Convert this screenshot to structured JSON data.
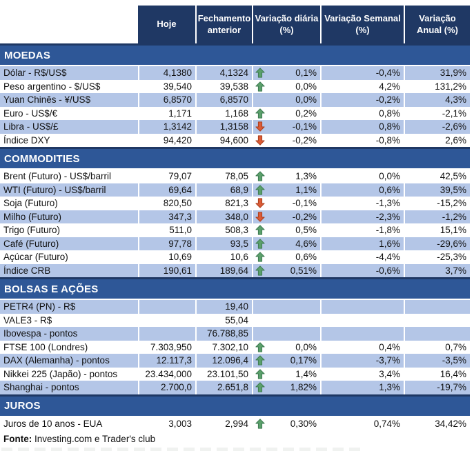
{
  "header": {
    "columns": [
      "Hoje",
      "Fechamento\nanterior",
      "Variação diária\n(%)",
      "Variação Semanal\n(%)",
      "Variação\nAnual (%)"
    ]
  },
  "sections": [
    {
      "title": "MOEDAS",
      "rows": [
        {
          "label": "Dólar - R$/US$",
          "hoje": "4,1380",
          "fechamento": "4,1324",
          "arrow": "up",
          "diaria": "0,1%",
          "semanal": "-0,4%",
          "anual": "31,9%"
        },
        {
          "label": "Peso argentino - $/US$",
          "hoje": "39,540",
          "fechamento": "39,538",
          "arrow": "up",
          "diaria": "0,0%",
          "semanal": "4,2%",
          "anual": "131,2%"
        },
        {
          "label": "Yuan Chinês - ¥/US$",
          "hoje": "6,8570",
          "fechamento": "6,8570",
          "arrow": null,
          "diaria": "0,0%",
          "semanal": "-0,2%",
          "anual": "4,3%"
        },
        {
          "label": "Euro - US$/€",
          "hoje": "1,171",
          "fechamento": "1,168",
          "arrow": "up",
          "diaria": "0,2%",
          "semanal": "0,8%",
          "anual": "-2,1%"
        },
        {
          "label": "Libra - US$/£",
          "hoje": "1,3142",
          "fechamento": "1,3158",
          "arrow": "down",
          "diaria": "-0,1%",
          "semanal": "0,8%",
          "anual": "-2,6%"
        },
        {
          "label": "Índice DXY",
          "hoje": "94,420",
          "fechamento": "94,600",
          "arrow": "down",
          "diaria": "-0,2%",
          "semanal": "-0,8%",
          "anual": "2,6%"
        }
      ]
    },
    {
      "title": "COMMODITIES",
      "rows": [
        {
          "label": "Brent (Futuro) - US$/barril",
          "hoje": "79,07",
          "fechamento": "78,05",
          "arrow": "up",
          "diaria": "1,3%",
          "semanal": "0,0%",
          "anual": "42,5%"
        },
        {
          "label": "WTI (Futuro) - US$/barril",
          "hoje": "69,64",
          "fechamento": "68,9",
          "arrow": "up",
          "diaria": "1,1%",
          "semanal": "0,6%",
          "anual": "39,5%"
        },
        {
          "label": "Soja (Futuro)",
          "hoje": "820,50",
          "fechamento": "821,3",
          "arrow": "down",
          "diaria": "-0,1%",
          "semanal": "-1,3%",
          "anual": "-15,2%"
        },
        {
          "label": "Milho (Futuro)",
          "hoje": "347,3",
          "fechamento": "348,0",
          "arrow": "down",
          "diaria": "-0,2%",
          "semanal": "-2,3%",
          "anual": "-1,2%"
        },
        {
          "label": "Trigo (Futuro)",
          "hoje": "511,0",
          "fechamento": "508,3",
          "arrow": "up",
          "diaria": "0,5%",
          "semanal": "-1,8%",
          "anual": "15,1%"
        },
        {
          "label": "Café (Futuro)",
          "hoje": "97,78",
          "fechamento": "93,5",
          "arrow": "up",
          "diaria": "4,6%",
          "semanal": "1,6%",
          "anual": "-29,6%"
        },
        {
          "label": "Açúcar (Futuro)",
          "hoje": "10,69",
          "fechamento": "10,6",
          "arrow": "up",
          "diaria": "0,6%",
          "semanal": "-4,4%",
          "anual": "-25,3%"
        },
        {
          "label": "Índice CRB",
          "hoje": "190,61",
          "fechamento": "189,64",
          "arrow": "up",
          "diaria": "0,51%",
          "semanal": "-0,6%",
          "anual": "3,7%"
        }
      ]
    },
    {
      "title": "BOLSAS E AÇÕES",
      "rows": [
        {
          "label": "PETR4 (PN) - R$",
          "hoje": "",
          "fechamento": "19,40",
          "arrow": null,
          "diaria": "",
          "semanal": "",
          "anual": ""
        },
        {
          "label": "VALE3 - R$",
          "hoje": "",
          "fechamento": "55,04",
          "arrow": null,
          "diaria": "",
          "semanal": "",
          "anual": ""
        },
        {
          "label": "Ibovespa - pontos",
          "hoje": "",
          "fechamento": "76.788,85",
          "arrow": null,
          "diaria": "",
          "semanal": "",
          "anual": ""
        },
        {
          "label": "FTSE 100 (Londres)",
          "hoje": "7.303,950",
          "fechamento": "7.302,10",
          "arrow": "up",
          "diaria": "0,0%",
          "semanal": "0,4%",
          "anual": "0,7%"
        },
        {
          "label": "DAX (Alemanha) - pontos",
          "hoje": "12.117,3",
          "fechamento": "12.096,4",
          "arrow": "up",
          "diaria": "0,17%",
          "semanal": "-3,7%",
          "anual": "-3,5%"
        },
        {
          "label": "Nikkei 225 (Japão) - pontos",
          "hoje": "23.434,000",
          "fechamento": "23.101,50",
          "arrow": "up",
          "diaria": "1,4%",
          "semanal": "3,4%",
          "anual": "16,4%"
        },
        {
          "label": "Shanghai - pontos",
          "hoje": "2.700,0",
          "fechamento": "2.651,8",
          "arrow": "up",
          "diaria": "1,82%",
          "semanal": "1,3%",
          "anual": "-19,7%"
        }
      ]
    },
    {
      "title": "JUROS",
      "rows": [
        {
          "label": "Juros de 10 anos - EUA",
          "hoje": "3,003",
          "fechamento": "2,994",
          "arrow": "up",
          "diaria": "0,30%",
          "semanal": "0,74%",
          "anual": "34,42%"
        }
      ]
    }
  ],
  "footer": {
    "source_label": "Fonte:",
    "source_text": " Investing.com e Trader's club"
  },
  "colors": {
    "header_bg": "#1F3864",
    "section_bg": "#2E5797",
    "section_border": "#1F3864",
    "band_bg": "#B4C6E7",
    "up_arrow_fill": "#5BA06B",
    "up_arrow_stroke": "#3E7B52",
    "down_arrow_fill": "#DB5B35",
    "down_arrow_stroke": "#A93E1E"
  }
}
